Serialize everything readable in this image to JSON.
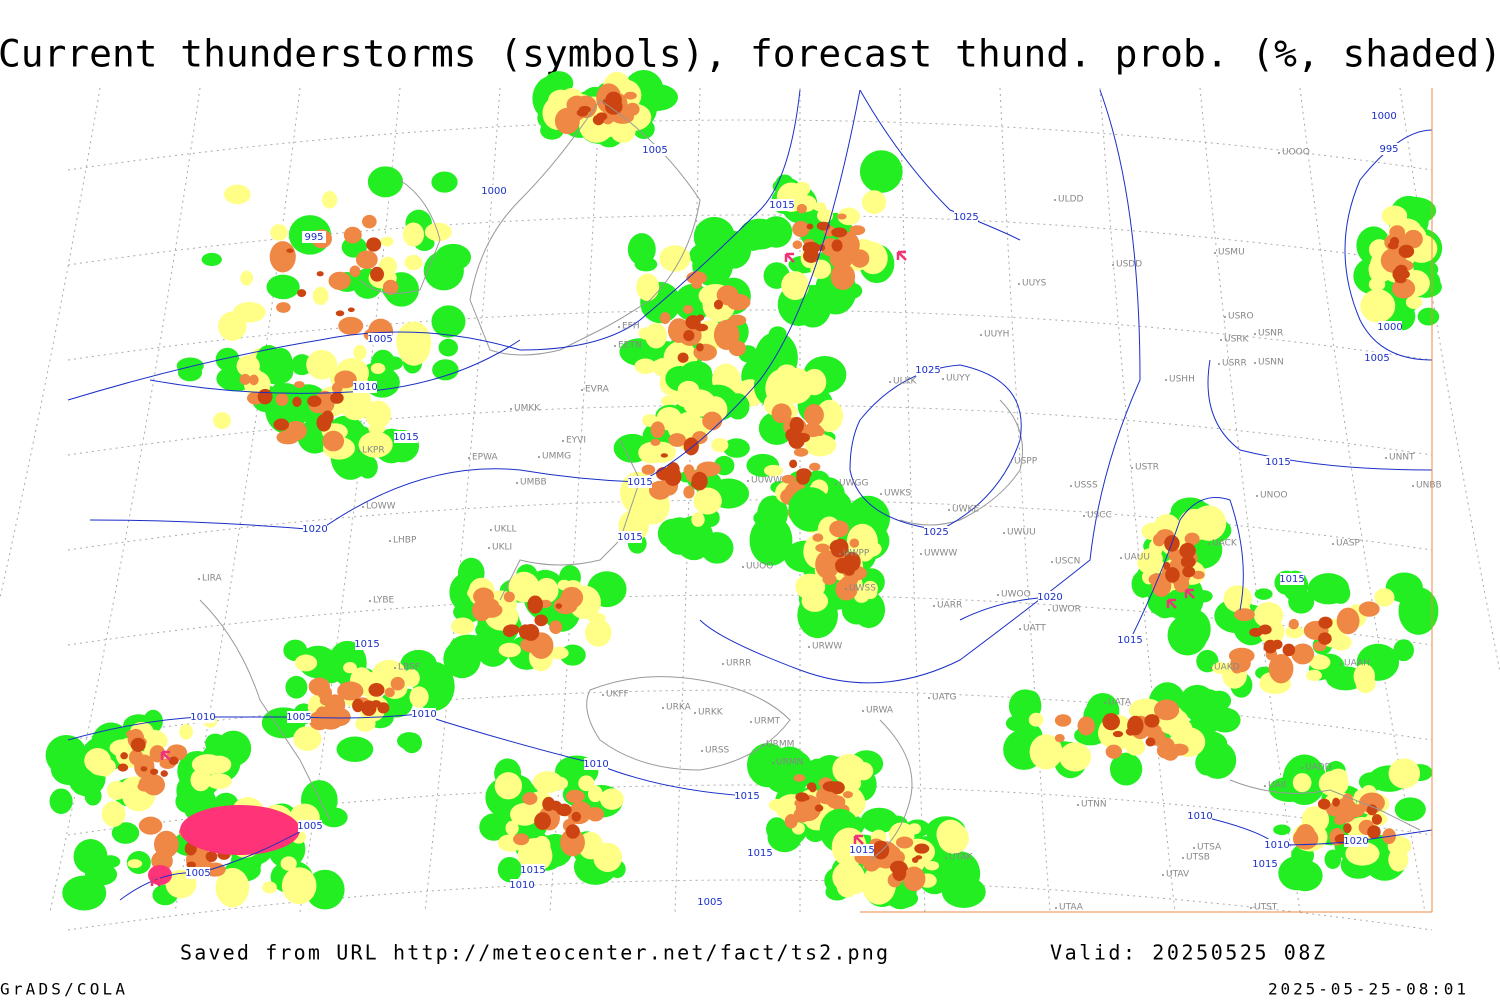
{
  "header": {
    "title": "Current thunderstorms (symbols), forecast thund. prob. (%, shaded)"
  },
  "footer": {
    "source": "Saved from URL http://meteocenter.net/fact/ts2.png",
    "valid": "Valid: 20250525 08Z",
    "software": "GrADS/COLA",
    "timestamp": "2025-05-25-08:01"
  },
  "map": {
    "isobar_labels": [
      "1005",
      "1000",
      "995",
      "1005",
      "1010",
      "1015",
      "1020",
      "1015",
      "1025",
      "1025",
      "1015",
      "1015",
      "1025",
      "1015",
      "1010",
      "1005",
      "1010",
      "1005",
      "1005",
      "1010",
      "1015",
      "1015",
      "1015",
      "1015",
      "1010",
      "1005",
      "1020",
      "1015",
      "1015",
      "1015",
      "1010",
      "1010",
      "1015",
      "1020",
      "1000",
      "995",
      "1000",
      "1005"
    ],
    "stations": [
      "EFH",
      "EETN",
      "EVRA",
      "UMKK",
      "EYVI",
      "EPWA",
      "UMMG",
      "UMBB",
      "LKPR",
      "LOWW",
      "LHBP",
      "LIRA",
      "LYBE",
      "LBSF",
      "UKLL",
      "UKLI",
      "UUOO",
      "ULKK",
      "UUYY",
      "UUYH",
      "UUYS",
      "ULDD",
      "USDD",
      "USMU",
      "USRO",
      "USRK",
      "USNR",
      "USRR",
      "USNN",
      "USHH",
      "UOOO",
      "USPP",
      "USSS",
      "USTR",
      "USCC",
      "UNOO",
      "UNNT",
      "UNBB",
      "UWGG",
      "UWKS",
      "UWKE",
      "UWUU",
      "UWWW",
      "UWPP",
      "UWSS",
      "UARR",
      "UWOO",
      "UWOR",
      "UATT",
      "USCN",
      "UAUU",
      "UACK",
      "UASP",
      "UATG",
      "URWA",
      "URWW",
      "URRR",
      "UKFF",
      "URKA",
      "URKK",
      "URMT",
      "URMM",
      "URMN",
      "URSS",
      "UTAK",
      "UTNN",
      "UTAA",
      "UTAV",
      "UTSB",
      "UTSA",
      "UTST",
      "UAII",
      "UADD",
      "UATA",
      "UAKD",
      "UAAH",
      "UUWW"
    ]
  }
}
